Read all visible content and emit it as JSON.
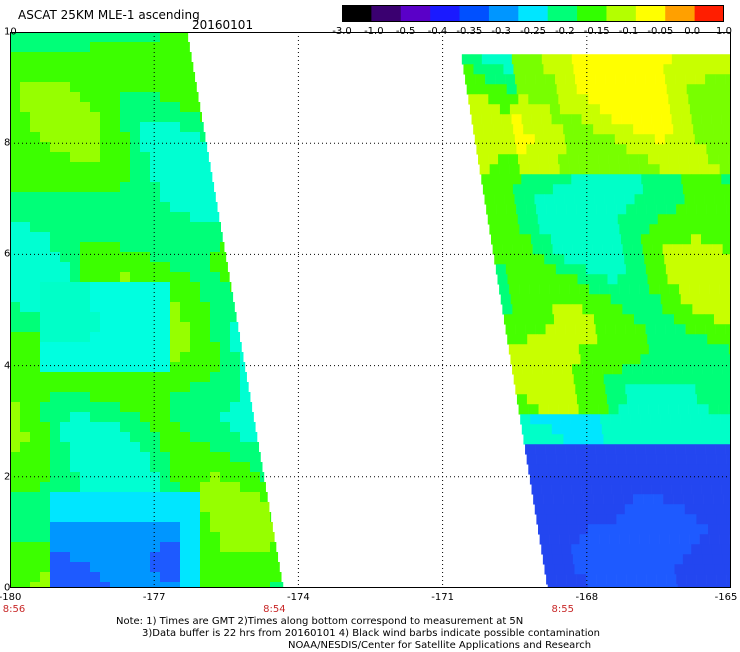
{
  "header": {
    "title": "ASCAT 25KM MLE-1 ascending",
    "date": "20160101"
  },
  "colorbar": {
    "tick_labels": [
      "-3.0",
      "-1.0",
      "-0.5",
      "-0.4",
      "-0.35",
      "-0.3",
      "-0.25",
      "-0.2",
      "-0.15",
      "-0.1",
      "-0.05",
      "0.0",
      "1.0"
    ],
    "colors": [
      "#000000",
      "#3a0070",
      "#5a00c8",
      "#1a1aff",
      "#0050ff",
      "#0096ff",
      "#00e6ff",
      "#00ff78",
      "#32ff00",
      "#b4ff00",
      "#ffff00",
      "#ffa000",
      "#ff1e00"
    ]
  },
  "map": {
    "lon_range": [
      -180,
      -165
    ],
    "lat_range": [
      0,
      10
    ],
    "lon_tick_labels": [
      "-180",
      "-177",
      "-174",
      "-171",
      "-168",
      "-165"
    ],
    "lat_tick_labels": [
      "0",
      "2",
      "4",
      "6",
      "8",
      "10"
    ],
    "time_labels": [
      {
        "lon": -180,
        "text": "8:56"
      },
      {
        "lon": -174.5,
        "text": "8:54"
      },
      {
        "lon": -168.5,
        "text": "8:55"
      }
    ],
    "gridlines": "dotted",
    "swaths": [
      {
        "name": "west",
        "lon_left": -180,
        "lat_top": 10,
        "lat_bottom": 0,
        "edge_lon_top": -176.3,
        "edge_lon_bottom": -174.3
      },
      {
        "name": "east",
        "lon_right": -165,
        "lat_top": 9.6,
        "lat_bottom": 0,
        "edge_lon_top": -170.6,
        "edge_lon_bottom": -168.8
      }
    ]
  },
  "notes": {
    "line1": "Note: 1) Times are GMT 2)Times along bottom correspond to measurement at 5N",
    "line2": "3)Data buffer is 22 hrs from 20160101 4) Black wind barbs indicate possible contamination",
    "line3": "NOAA/NESDIS/Center for Satellite Applications and Research"
  }
}
